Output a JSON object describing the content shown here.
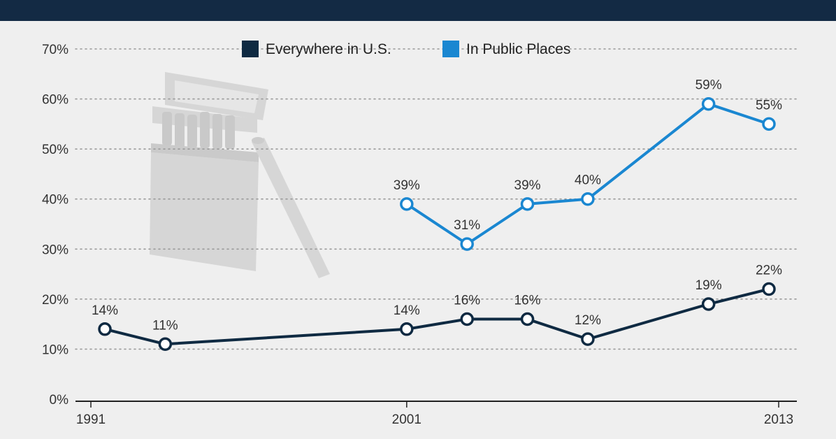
{
  "chart_data": {
    "type": "line",
    "title": "",
    "xlabel": "",
    "ylabel": "",
    "ylim": [
      0,
      70
    ],
    "xlim": [
      1991,
      2013
    ],
    "y_ticks": [
      "0%",
      "10%",
      "20%",
      "30%",
      "40%",
      "50%",
      "60%",
      "70%"
    ],
    "x_ticks": [
      {
        "x": 1991,
        "label": "1991"
      },
      {
        "x": 2001,
        "label": "2001"
      },
      {
        "x": 2013,
        "label": "2013"
      }
    ],
    "grid": "horizontal dotted",
    "legend": "top-center",
    "series": [
      {
        "name": "Everywhere in U.S.",
        "color": "#0f2a42",
        "points": [
          {
            "x": 1991,
            "y": 14,
            "label": "14%"
          },
          {
            "x": 1993,
            "y": 11,
            "label": "11%"
          },
          {
            "x": 2001,
            "y": 14,
            "label": "14%"
          },
          {
            "x": 2003,
            "y": 16,
            "label": "16%"
          },
          {
            "x": 2005,
            "y": 16,
            "label": "16%"
          },
          {
            "x": 2007,
            "y": 12,
            "label": "12%"
          },
          {
            "x": 2011,
            "y": 19,
            "label": "19%"
          },
          {
            "x": 2013,
            "y": 22,
            "label": "22%"
          }
        ]
      },
      {
        "name": "In Public Places",
        "color": "#1a87d1",
        "points": [
          {
            "x": 2001,
            "y": 39,
            "label": "39%"
          },
          {
            "x": 2003,
            "y": 31,
            "label": "31%"
          },
          {
            "x": 2005,
            "y": 39,
            "label": "39%"
          },
          {
            "x": 2007,
            "y": 40,
            "label": "40%"
          },
          {
            "x": 2011,
            "y": 59,
            "label": "59%"
          },
          {
            "x": 2013,
            "y": 55,
            "label": "55%"
          }
        ]
      }
    ]
  },
  "colors": {
    "header_bar": "#132a44",
    "background": "#efefef",
    "illustration": "#d6d6d6"
  },
  "decoration": {
    "illustration": "cigarette-pack-icon"
  }
}
